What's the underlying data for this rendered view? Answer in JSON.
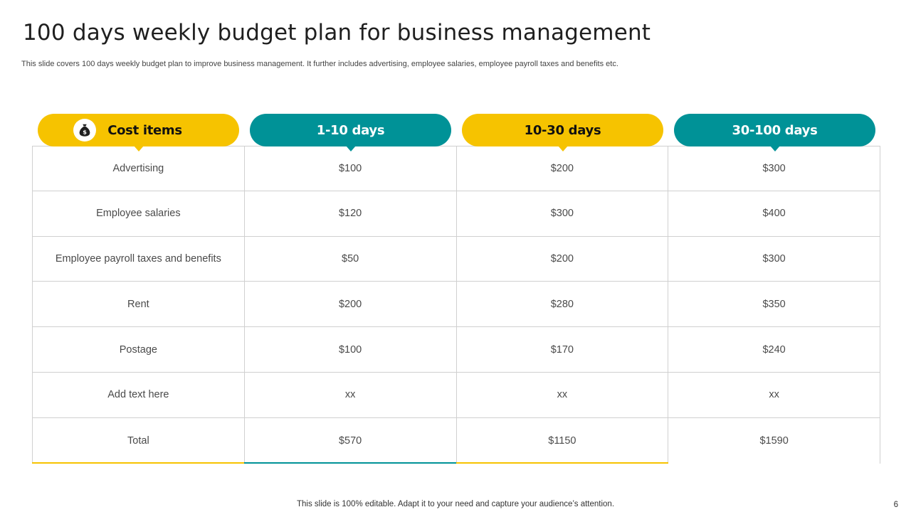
{
  "slide": {
    "title": "100 days weekly budget plan for business management",
    "subtitle": "This slide covers 100 days weekly budget plan to improve business management. It further includes advertising, employee salaries, employee payroll taxes and benefits etc.",
    "footer": "This slide is 100% editable. Adapt it to your need and capture your audience’s attention.",
    "page_number": "6"
  },
  "colors": {
    "yellow": "#f6c300",
    "teal": "#009297"
  },
  "table": {
    "headers": [
      {
        "label": "Cost items",
        "color": "yellow",
        "icon": "money-bag-icon"
      },
      {
        "label": "1-10 days",
        "color": "teal"
      },
      {
        "label": "10-30 days",
        "color": "yellow"
      },
      {
        "label": "30-100 days",
        "color": "teal"
      }
    ],
    "rows": [
      [
        "Advertising",
        "$100",
        "$200",
        "$300"
      ],
      [
        "Employee salaries",
        "$120",
        "$300",
        "$400"
      ],
      [
        "Employee payroll taxes and benefits",
        "$50",
        "$200",
        "$300"
      ],
      [
        "Rent",
        "$200",
        "$280",
        "$350"
      ],
      [
        "Postage",
        "$100",
        "$170",
        "$240"
      ],
      [
        "Add text here",
        "xx",
        "xx",
        "xx"
      ],
      [
        "Total",
        "$570",
        "$1150",
        "$1590"
      ]
    ]
  }
}
